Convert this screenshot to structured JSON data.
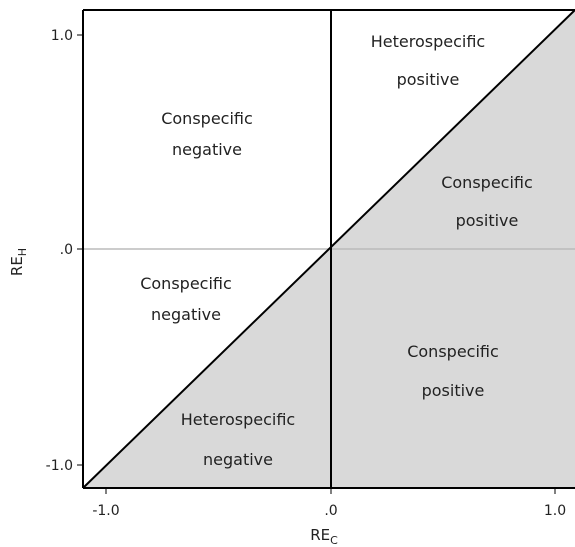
{
  "axes": {
    "x_title": "RE",
    "x_title_subscript": "C",
    "y_title": "RE",
    "y_title_subscript": "H",
    "x_ticks": [
      "-1.0",
      ".0",
      "1.0"
    ],
    "y_ticks": [
      "1.0",
      ".0",
      "-1.0"
    ]
  },
  "regions": {
    "top_left_line1": "Conspecific",
    "top_left_line2": "negative",
    "top_right_line1": "Heterospecific",
    "top_right_line2": "positive",
    "right_upper_line1": "Conspecific",
    "right_upper_line2": "positive",
    "left_lower_line1": "Conspecific",
    "left_lower_line2": "negative",
    "bottom_right_line1": "Conspecific",
    "bottom_right_line2": "positive",
    "bottom_left_line1": "Heterospecific",
    "bottom_left_line2": "negative"
  },
  "colors": {
    "shade": "#d9d9d9",
    "axis": "#000000",
    "zero_line": "#bbbbbb"
  }
}
